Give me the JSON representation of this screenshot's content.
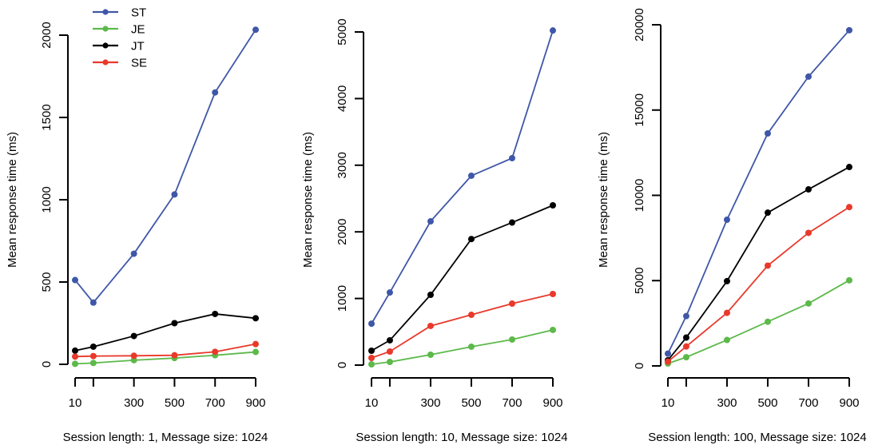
{
  "chart_data": [
    {
      "type": "line",
      "title": "",
      "xlabel": "Session length: 1, Message size: 1024",
      "ylabel": "Mean response time (ms)",
      "x": [
        10,
        100,
        300,
        500,
        700,
        900
      ],
      "xticks": [
        10,
        100,
        300,
        500,
        700,
        900
      ],
      "xtick_labels": [
        "10",
        "",
        "300",
        "500",
        "700",
        "900"
      ],
      "xlim": [
        10,
        900
      ],
      "yticks": [
        0,
        500,
        1000,
        1500,
        2000
      ],
      "ytick_labels": [
        "0",
        "500",
        "1000",
        "1500",
        "2000"
      ],
      "ylim": [
        0,
        2000
      ],
      "grid": false,
      "legend": {
        "placement": "top-left",
        "entries": [
          "ST",
          "JE",
          "JT",
          "SE"
        ]
      },
      "series": [
        {
          "name": "ST",
          "color": "#3f57a8",
          "values": [
            512,
            375,
            672,
            1032,
            1652,
            2033
          ]
        },
        {
          "name": "JE",
          "color": "#5cb94a",
          "values": [
            3,
            8,
            25,
            38,
            55,
            75
          ]
        },
        {
          "name": "JT",
          "color": "#000000",
          "values": [
            83,
            107,
            172,
            250,
            306,
            280
          ]
        },
        {
          "name": "SE",
          "color": "#e8392b",
          "values": [
            47,
            50,
            52,
            55,
            76,
            123
          ]
        }
      ]
    },
    {
      "type": "line",
      "title": "",
      "xlabel": "Session length: 10, Message size: 1024",
      "ylabel": "Mean response time (ms)",
      "x": [
        10,
        100,
        300,
        500,
        700,
        900
      ],
      "xticks": [
        10,
        100,
        300,
        500,
        700,
        900
      ],
      "xtick_labels": [
        "10",
        "",
        "300",
        "500",
        "700",
        "900"
      ],
      "xlim": [
        10,
        900
      ],
      "yticks": [
        0,
        1000,
        2000,
        3000,
        4000,
        5000
      ],
      "ytick_labels": [
        "0",
        "1000",
        "2000",
        "3000",
        "4000",
        "5000"
      ],
      "ylim": [
        0,
        5000
      ],
      "grid": false,
      "legend": null,
      "series": [
        {
          "name": "ST",
          "color": "#3f57a8",
          "values": [
            622,
            1090,
            2158,
            2842,
            3106,
            5022
          ]
        },
        {
          "name": "JE",
          "color": "#5cb94a",
          "values": [
            12,
            48,
            156,
            276,
            384,
            528
          ]
        },
        {
          "name": "JT",
          "color": "#000000",
          "values": [
            216,
            372,
            1055,
            1892,
            2140,
            2398
          ]
        },
        {
          "name": "SE",
          "color": "#e8392b",
          "values": [
            108,
            204,
            588,
            755,
            923,
            1067
          ]
        }
      ]
    },
    {
      "type": "line",
      "title": "",
      "xlabel": "Session length: 100, Message size: 1024",
      "ylabel": "Mean response time (ms)",
      "x": [
        10,
        100,
        300,
        500,
        700,
        900
      ],
      "xticks": [
        10,
        100,
        300,
        500,
        700,
        900
      ],
      "xtick_labels": [
        "10",
        "",
        "300",
        "500",
        "700",
        "900"
      ],
      "xlim": [
        10,
        900
      ],
      "yticks": [
        0,
        5000,
        10000,
        15000,
        20000
      ],
      "ytick_labels": [
        "0",
        "5000",
        "10000",
        "15000",
        "20000"
      ],
      "ylim": [
        0,
        20000
      ],
      "grid": false,
      "legend": null,
      "series": [
        {
          "name": "ST",
          "color": "#3f57a8",
          "values": [
            720,
            2920,
            8570,
            13630,
            16960,
            19680
          ]
        },
        {
          "name": "JE",
          "color": "#5cb94a",
          "values": [
            140,
            510,
            1520,
            2590,
            3660,
            5020
          ]
        },
        {
          "name": "JT",
          "color": "#000000",
          "values": [
            330,
            1660,
            4970,
            8985,
            10350,
            11660
          ]
        },
        {
          "name": "SE",
          "color": "#e8392b",
          "values": [
            250,
            1140,
            3110,
            5880,
            7800,
            9310
          ]
        }
      ]
    }
  ]
}
